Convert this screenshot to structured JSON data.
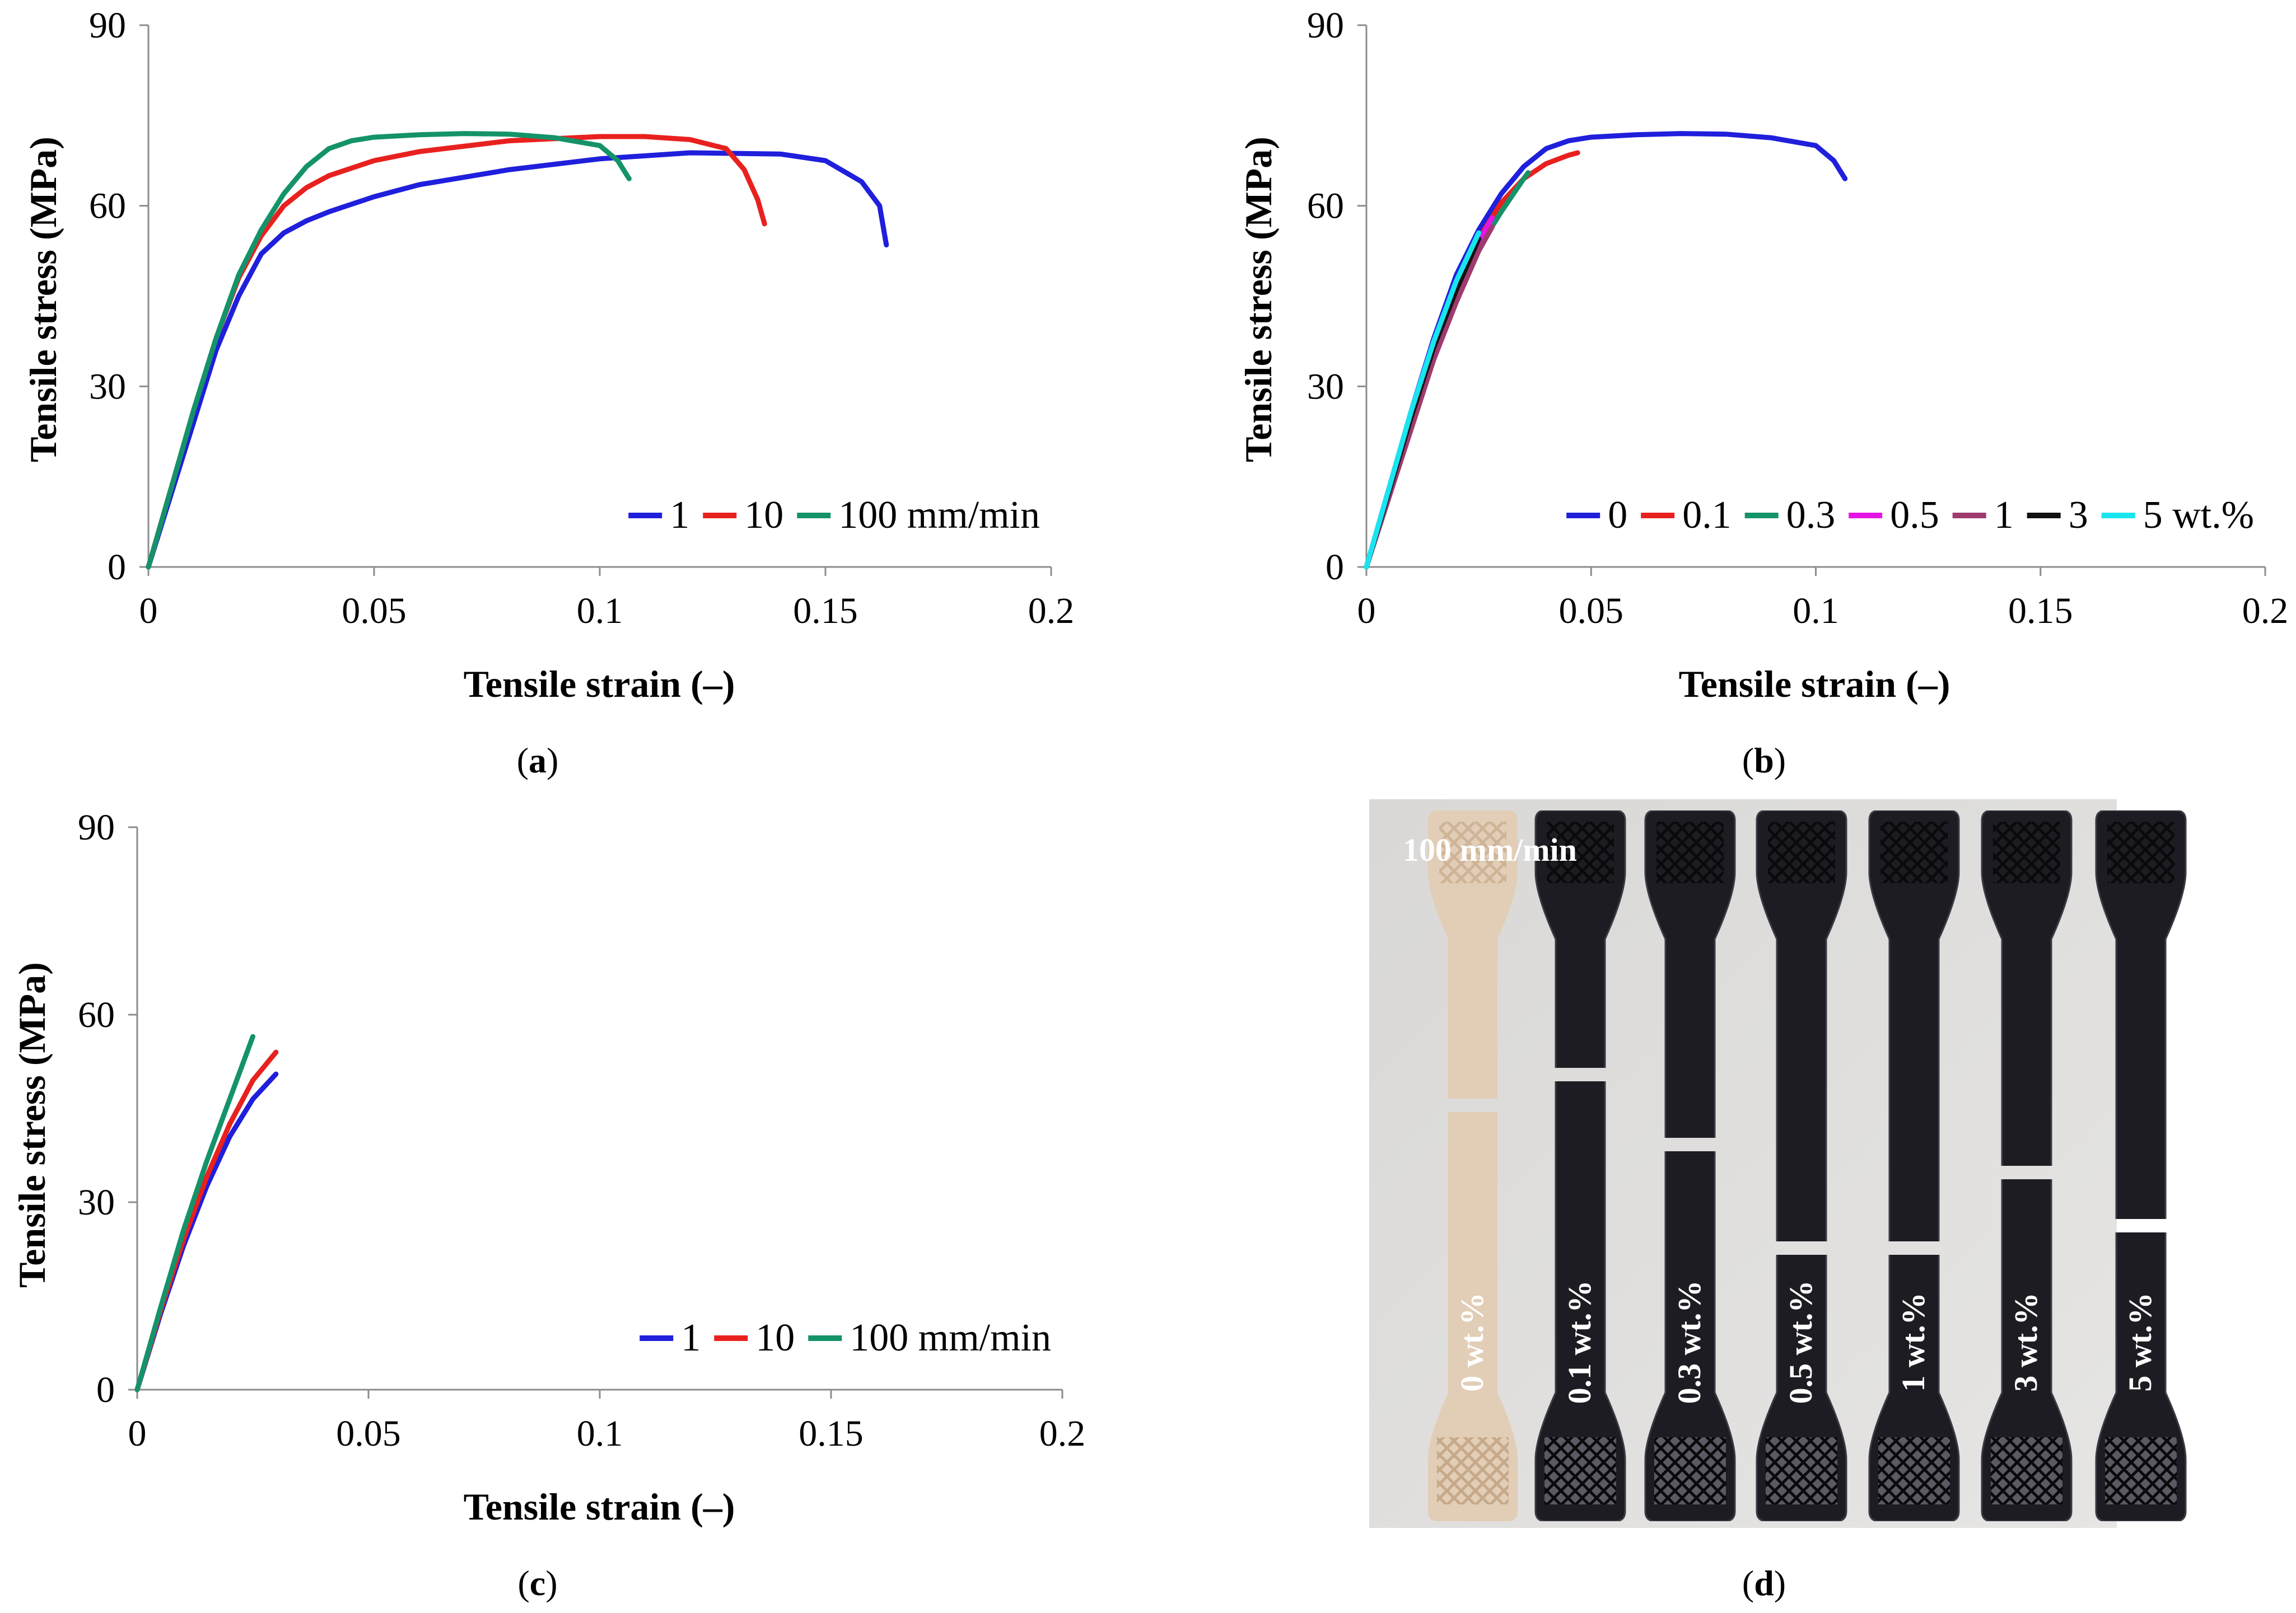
{
  "chart_data": [
    {
      "id": "a",
      "type": "line",
      "caption": "a",
      "xlabel": "Tensile strain (–)",
      "ylabel": "Tensile stress (MPa)",
      "xlim": [
        0,
        0.2
      ],
      "ylim": [
        0,
        90
      ],
      "xticks": [
        "0",
        "0.05",
        "0.1",
        "0.15",
        "0.2"
      ],
      "yticks": [
        "0",
        "30",
        "60",
        "90"
      ],
      "legend_position": "bottom-right",
      "legend_suffix": "mm/min",
      "series": [
        {
          "name": "1",
          "color": "#1f1fdc",
          "x": [
            0,
            0.005,
            0.01,
            0.015,
            0.02,
            0.025,
            0.03,
            0.035,
            0.04,
            0.05,
            0.06,
            0.08,
            0.1,
            0.12,
            0.14,
            0.15,
            0.158,
            0.162,
            0.1635
          ],
          "y": [
            0,
            12,
            24,
            36,
            45,
            52,
            55.5,
            57.5,
            59,
            61.5,
            63.5,
            66,
            67.8,
            68.8,
            68.6,
            67.5,
            64,
            60,
            53.5
          ]
        },
        {
          "name": "10",
          "color": "#e8211f",
          "x": [
            0,
            0.005,
            0.01,
            0.015,
            0.02,
            0.025,
            0.03,
            0.035,
            0.04,
            0.05,
            0.06,
            0.08,
            0.1,
            0.11,
            0.12,
            0.128,
            0.132,
            0.135,
            0.1365
          ],
          "y": [
            0,
            13,
            26,
            38,
            48,
            55,
            60,
            63,
            65,
            67.5,
            69,
            70.8,
            71.5,
            71.5,
            71,
            69.5,
            66,
            61,
            57
          ]
        },
        {
          "name": "100",
          "color": "#14936a",
          "x": [
            0,
            0.005,
            0.01,
            0.015,
            0.02,
            0.025,
            0.03,
            0.035,
            0.04,
            0.045,
            0.05,
            0.06,
            0.07,
            0.08,
            0.09,
            0.1,
            0.104,
            0.1065
          ],
          "y": [
            0,
            13,
            26,
            38,
            48.5,
            56,
            62,
            66.5,
            69.5,
            70.8,
            71.4,
            71.8,
            72,
            71.9,
            71.3,
            70,
            67.5,
            64.5
          ]
        }
      ]
    },
    {
      "id": "b",
      "type": "line",
      "caption": "b",
      "xlabel": "Tensile strain (–)",
      "ylabel": "Tensile stress (MPa)",
      "xlim": [
        0,
        0.2
      ],
      "ylim": [
        0,
        90
      ],
      "xticks": [
        "0",
        "0.05",
        "0.1",
        "0.15",
        "0.2"
      ],
      "yticks": [
        "0",
        "30",
        "60",
        "90"
      ],
      "legend_position": "bottom-right",
      "legend_suffix": "wt.%",
      "series": [
        {
          "name": "0",
          "color": "#1f1fdc",
          "x": [
            0,
            0.005,
            0.01,
            0.015,
            0.02,
            0.025,
            0.03,
            0.035,
            0.04,
            0.045,
            0.05,
            0.06,
            0.07,
            0.08,
            0.09,
            0.1,
            0.104,
            0.1065
          ],
          "y": [
            0,
            13,
            26,
            38,
            48.5,
            56,
            62,
            66.5,
            69.5,
            70.8,
            71.4,
            71.8,
            72,
            71.9,
            71.3,
            70,
            67.5,
            64.5
          ]
        },
        {
          "name": "0.1",
          "color": "#e8211f",
          "x": [
            0,
            0.005,
            0.01,
            0.015,
            0.02,
            0.025,
            0.03,
            0.035,
            0.04,
            0.045,
            0.047
          ],
          "y": [
            0,
            12.5,
            25,
            36.5,
            46.5,
            54.5,
            60.5,
            64.5,
            67,
            68.4,
            68.8
          ]
        },
        {
          "name": "0.3",
          "color": "#14936a",
          "x": [
            0,
            0.005,
            0.01,
            0.015,
            0.02,
            0.025,
            0.03,
            0.035,
            0.036
          ],
          "y": [
            0,
            12,
            24,
            35.5,
            45,
            53,
            59,
            64.5,
            65.5
          ]
        },
        {
          "name": "0.5",
          "color": "#e516e5",
          "x": [
            0,
            0.005,
            0.01,
            0.015,
            0.02,
            0.025,
            0.028
          ],
          "y": [
            0,
            12.5,
            25,
            36.5,
            46,
            54,
            58
          ]
        },
        {
          "name": "1",
          "color": "#9e3a6e",
          "x": [
            0,
            0.005,
            0.01,
            0.015,
            0.02,
            0.025,
            0.028
          ],
          "y": [
            0,
            11.5,
            23,
            34.5,
            44,
            52.5,
            56.5
          ]
        },
        {
          "name": "3",
          "color": "#111111",
          "x": [
            0,
            0.005,
            0.01,
            0.015,
            0.02,
            0.025
          ],
          "y": [
            0,
            12.5,
            25,
            36.5,
            46,
            54.5
          ]
        },
        {
          "name": "5",
          "color": "#19e5f0",
          "x": [
            0,
            0.005,
            0.01,
            0.015,
            0.02,
            0.025
          ],
          "y": [
            0,
            13,
            26,
            37.5,
            47.5,
            55.5
          ]
        }
      ]
    },
    {
      "id": "c",
      "type": "line",
      "caption": "c",
      "xlabel": "Tensile strain (–)",
      "ylabel": "Tensile stress (MPa)",
      "xlim": [
        0,
        0.2
      ],
      "ylim": [
        0,
        90
      ],
      "xticks": [
        "0",
        "0.05",
        "0.1",
        "0.15",
        "0.2"
      ],
      "yticks": [
        "0",
        "30",
        "60",
        "90"
      ],
      "legend_position": "bottom-right",
      "legend_suffix": "mm/min",
      "series": [
        {
          "name": "1",
          "color": "#1f1fdc",
          "x": [
            0,
            0.005,
            0.01,
            0.015,
            0.02,
            0.025,
            0.03
          ],
          "y": [
            0,
            12,
            23,
            32.5,
            40.5,
            46.5,
            50.5
          ]
        },
        {
          "name": "10",
          "color": "#e8211f",
          "x": [
            0,
            0.005,
            0.01,
            0.015,
            0.02,
            0.025,
            0.03
          ],
          "y": [
            0,
            12.5,
            24,
            34,
            42.5,
            49.5,
            54
          ]
        },
        {
          "name": "100",
          "color": "#14936a",
          "x": [
            0,
            0.005,
            0.01,
            0.015,
            0.02,
            0.025
          ],
          "y": [
            0,
            13,
            25.5,
            36.5,
            46.5,
            56.5
          ]
        }
      ]
    }
  ],
  "photo": {
    "caption": "d",
    "speed_label": "100 mm/min",
    "specimens": [
      "0 wt.%",
      "0.1 wt.%",
      "0.3 wt.%",
      "0.5 wt.%",
      "1 wt.%",
      "3 wt.%",
      "5 wt.%"
    ]
  }
}
